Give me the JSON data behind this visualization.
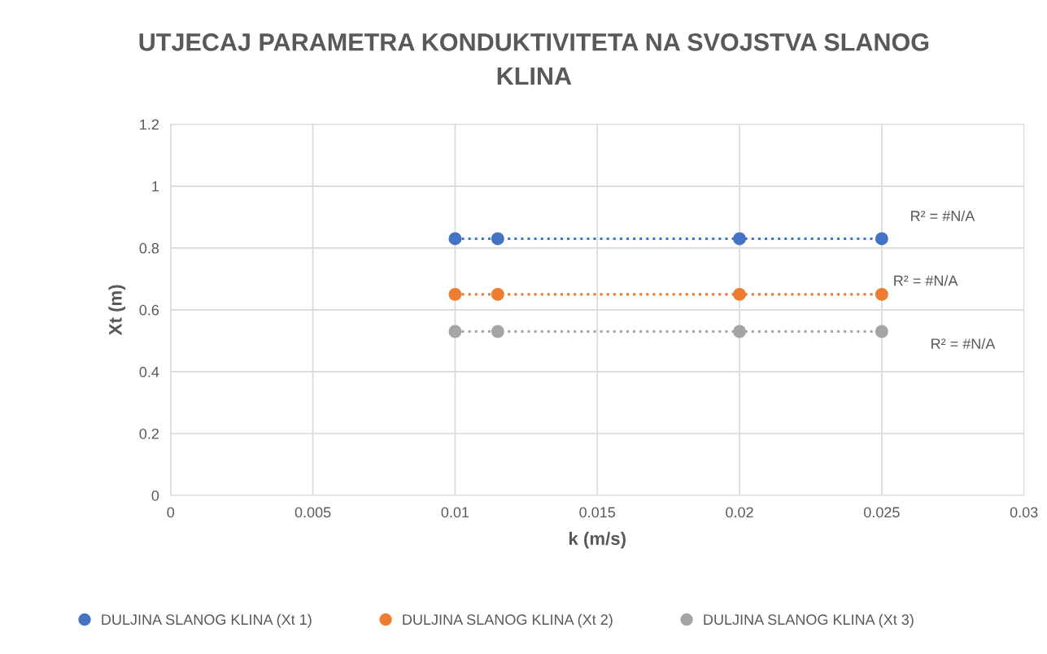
{
  "chart_data": {
    "type": "scatter",
    "title": "UTJECAJ PARAMETRA KONDUKTIVITETA NA SVOJSTVA SLANOG KLINA",
    "xlabel": "k (m/s)",
    "ylabel": "Xt (m)",
    "x": [
      0.01,
      0.0115,
      0.02,
      0.025
    ],
    "series": [
      {
        "name": "DULJINA SLANOG KLINA (Xt 1)",
        "color": "#4472c4",
        "marker": "circle",
        "values": [
          0.83,
          0.83,
          0.83,
          0.83
        ]
      },
      {
        "name": "DULJINA SLANOG KLINA (Xt 2)",
        "color": "#ed7d31",
        "marker": "circle",
        "values": [
          0.65,
          0.65,
          0.65,
          0.65
        ]
      },
      {
        "name": "DULJINA SLANOG KLINA (Xt 3)",
        "color": "#a5a5a5",
        "marker": "circle",
        "values": [
          0.53,
          0.53,
          0.53,
          0.53
        ]
      },
      {
        "type": "line",
        "color": "#4472c4",
        "line_style": "dotted",
        "values": [
          0.83,
          0.83,
          0.83,
          0.83
        ]
      },
      {
        "type": "line",
        "color": "#ed7d31",
        "line_style": "dotted",
        "values": [
          0.65,
          0.65,
          0.65,
          0.65
        ]
      },
      {
        "type": "line",
        "color": "#a5a5a5",
        "line_style": "dotted",
        "values": [
          0.53,
          0.53,
          0.53,
          0.53
        ]
      }
    ],
    "annotations": [
      "R² = #N/A",
      "R² = #N/A",
      "R² = #N/A"
    ],
    "xlim": [
      0,
      0.03
    ],
    "xticks": [
      0,
      0.005,
      0.01,
      0.015,
      0.02,
      0.025,
      0.03
    ],
    "ylim": [
      0,
      1.2
    ],
    "yticks": [
      0,
      0.2,
      0.4,
      0.6,
      0.8,
      1,
      1.2
    ],
    "grid": true,
    "legend": "bottom"
  }
}
